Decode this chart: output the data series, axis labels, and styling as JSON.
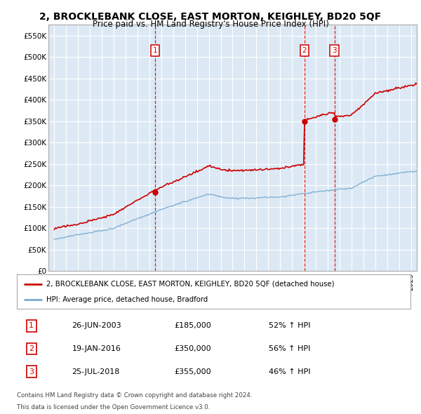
{
  "title": "2, BROCKLEBANK CLOSE, EAST MORTON, KEIGHLEY, BD20 5QF",
  "subtitle": "Price paid vs. HM Land Registry's House Price Index (HPI)",
  "plot_bg_color": "#dce9f5",
  "ylim": [
    0,
    575000
  ],
  "yticks": [
    0,
    50000,
    100000,
    150000,
    200000,
    250000,
    300000,
    350000,
    400000,
    450000,
    500000,
    550000
  ],
  "ytick_labels": [
    "£0",
    "£50K",
    "£100K",
    "£150K",
    "£200K",
    "£250K",
    "£300K",
    "£350K",
    "£400K",
    "£450K",
    "£500K",
    "£550K"
  ],
  "sales": [
    {
      "label": "1",
      "date_num": 2003.49,
      "price": 185000
    },
    {
      "label": "2",
      "date_num": 2016.05,
      "price": 350000
    },
    {
      "label": "3",
      "date_num": 2018.57,
      "price": 355000
    }
  ],
  "red_line_color": "#cc0000",
  "blue_line_color": "#7aabcf",
  "legend_entries": [
    "2, BROCKLEBANK CLOSE, EAST MORTON, KEIGHLEY, BD20 5QF (detached house)",
    "HPI: Average price, detached house, Bradford"
  ],
  "table_rows": [
    [
      "1",
      "26-JUN-2003",
      "£185,000",
      "52% ↑ HPI"
    ],
    [
      "2",
      "19-JAN-2016",
      "£350,000",
      "56% ↑ HPI"
    ],
    [
      "3",
      "25-JUL-2018",
      "£355,000",
      "46% ↑ HPI"
    ]
  ],
  "footer": [
    "Contains HM Land Registry data © Crown copyright and database right 2024.",
    "This data is licensed under the Open Government Licence v3.0."
  ],
  "xmin": 1994.5,
  "xmax": 2025.5
}
